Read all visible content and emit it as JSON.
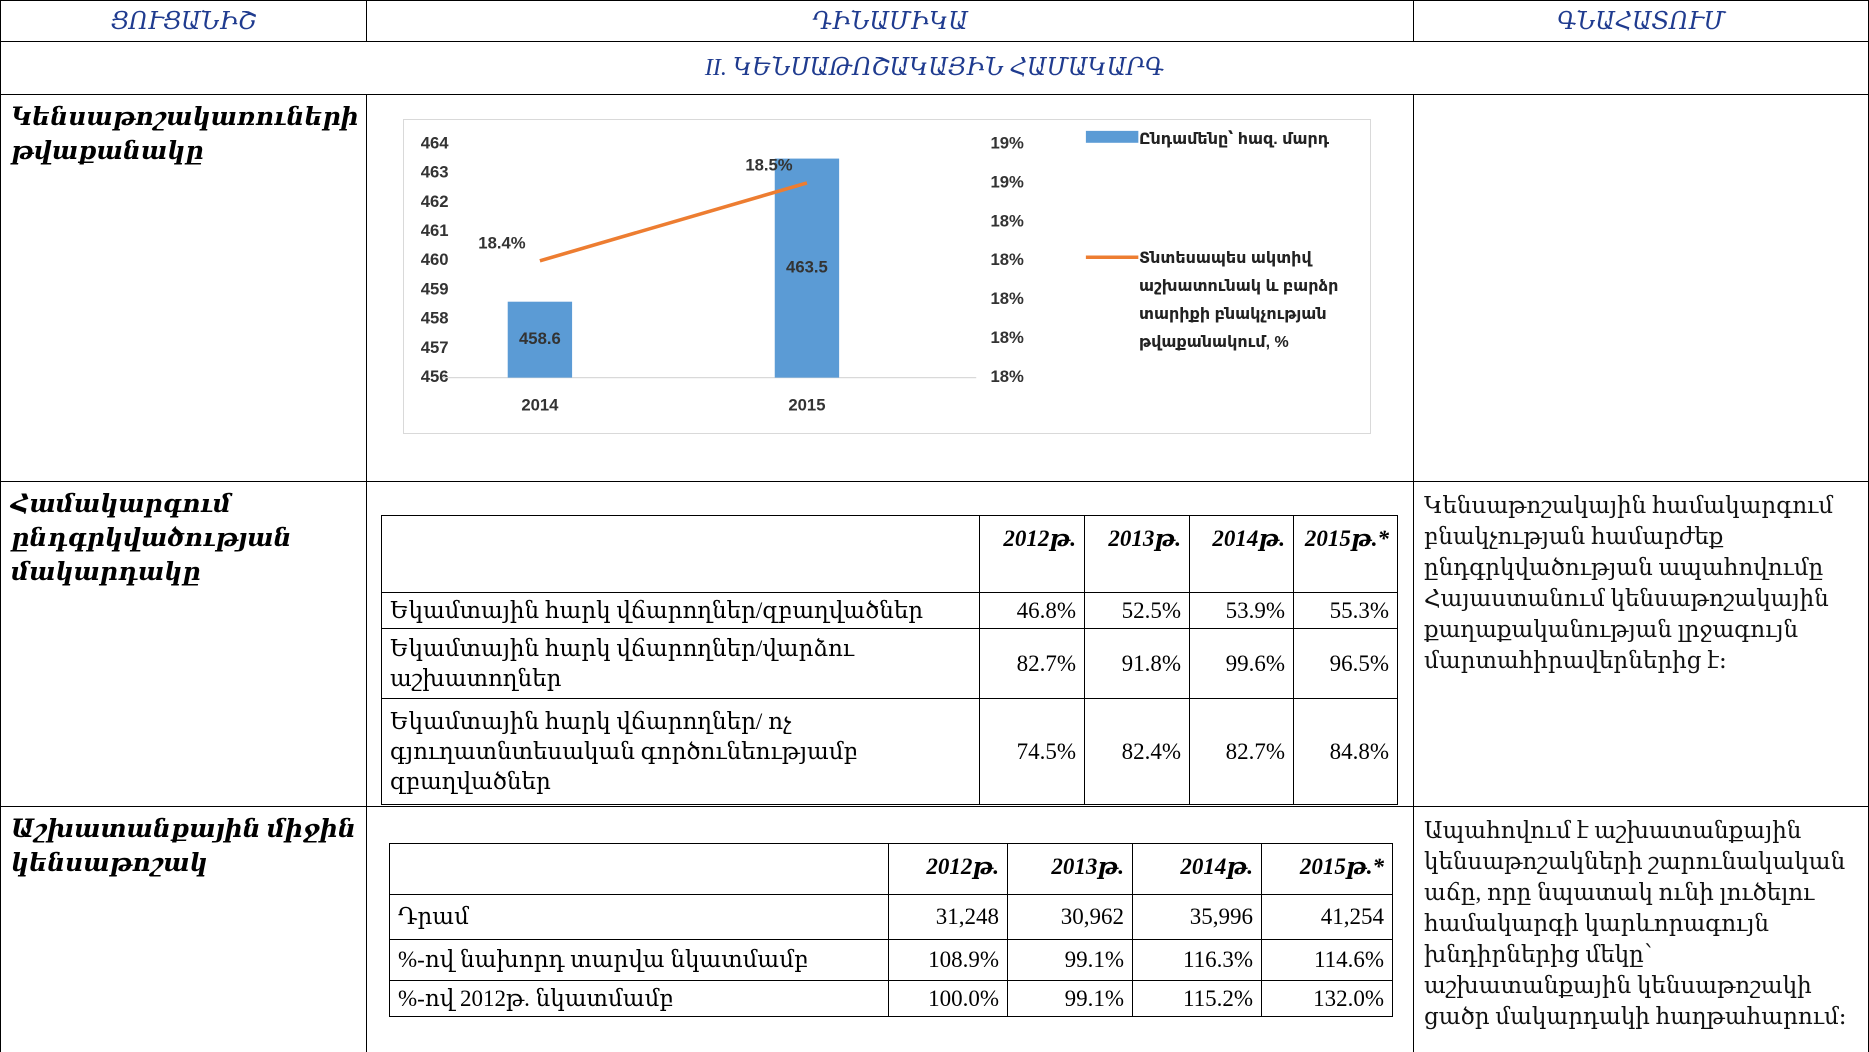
{
  "header": {
    "columns": [
      "ՑՈՒՑԱՆԻՇ",
      "ԴԻՆԱՄԻԿԱ",
      "ԳՆԱՀԱՏՈՒՄ"
    ]
  },
  "section": "II. ԿԵՆՍԱԹՈՇԱԿԱՅԻՆ ՀԱՄԱԿԱՐԳ",
  "rows": [
    {
      "label": "Կենսաթոշակառուների թվաքանակը"
    },
    {
      "label": "Համակարգում ընդգրկվածության մակարդակը",
      "assessment": "Կենսաթոշակային համակարգում բնակչության համարժեք ընդգրկվածության ապահովումը Հայաստանում կենսաթոշակային քաղաքականության լրջագույն մարտահիրավերներից է։"
    },
    {
      "label": "Աշխատանքային միջին կենսաթոշակ",
      "assessment": "Ապահովում է աշխատանքային կենսաթոշակների շարունակական աճը, որը նպատակ ունի լուծելու համակարգի կարևորագույն խնդիրներից մեկը՝ աշխատանքային կենսաթոշակի ցածր մակարդակի հաղթահարում։"
    }
  ],
  "tables": [
    {
      "columns": [
        "2012թ.",
        "2013թ.",
        "2014թ.",
        "2015թ.*"
      ],
      "rows": [
        [
          "Եկամտային հարկ վճարողներ/զբաղվածներ",
          "46.8%",
          "52.5%",
          "53.9%",
          "55.3%"
        ],
        [
          "Եկամտային հարկ վճարողներ/վարձու աշխատողներ",
          "82.7%",
          "91.8%",
          "99.6%",
          "96.5%"
        ],
        [
          "Եկամտային հարկ վճարողներ/ ոչ գյուղատնտեսական գործունեությամբ զբաղվածներ",
          "74.5%",
          "82.4%",
          "82.7%",
          "84.8%"
        ]
      ]
    },
    {
      "columns": [
        "2012թ.",
        "2013թ.",
        "2014թ.",
        "2015թ.*"
      ],
      "rows": [
        [
          "Դրամ",
          "31,248",
          "30,962",
          "35,996",
          "41,254"
        ],
        [
          "%-ով նախորդ տարվա նկատմամբ",
          "108.9%",
          "99.1%",
          "116.3%",
          "114.6%"
        ],
        [
          "%-ով 2012թ. նկատմամբ",
          "100.0%",
          "99.1%",
          "115.2%",
          "132.0%"
        ]
      ]
    }
  ],
  "chart_data": {
    "type": "bar",
    "categories": [
      "2014",
      "2015"
    ],
    "series": [
      {
        "name": "Ընդամենը՝ հազ. մարդ",
        "type": "bar",
        "color": "#5b9bd5",
        "values": [
          458.6,
          463.5
        ]
      },
      {
        "name": "Տնտեսապես ակտիվ աշխատունակ և բարձր տարիքի բնակչության թվաքանակում, %",
        "type": "line",
        "axis": "y2",
        "color": "#ed7d31",
        "values": [
          18.4,
          18.5
        ],
        "value_labels": [
          "18.4%",
          "18.5%"
        ]
      }
    ],
    "ylim": [
      456,
      464
    ],
    "yticks": [
      456,
      457,
      458,
      459,
      460,
      461,
      462,
      463,
      464
    ],
    "y2lim": [
      18.25,
      18.55
    ],
    "y2ticks": [
      {
        "value": 18.25,
        "label": "18%"
      },
      {
        "value": 18.3,
        "label": "18%"
      },
      {
        "value": 18.35,
        "label": "18%"
      },
      {
        "value": 18.4,
        "label": "18%"
      },
      {
        "value": 18.45,
        "label": "18%"
      },
      {
        "value": 18.5,
        "label": "19%"
      },
      {
        "value": 18.55,
        "label": "19%"
      }
    ]
  }
}
